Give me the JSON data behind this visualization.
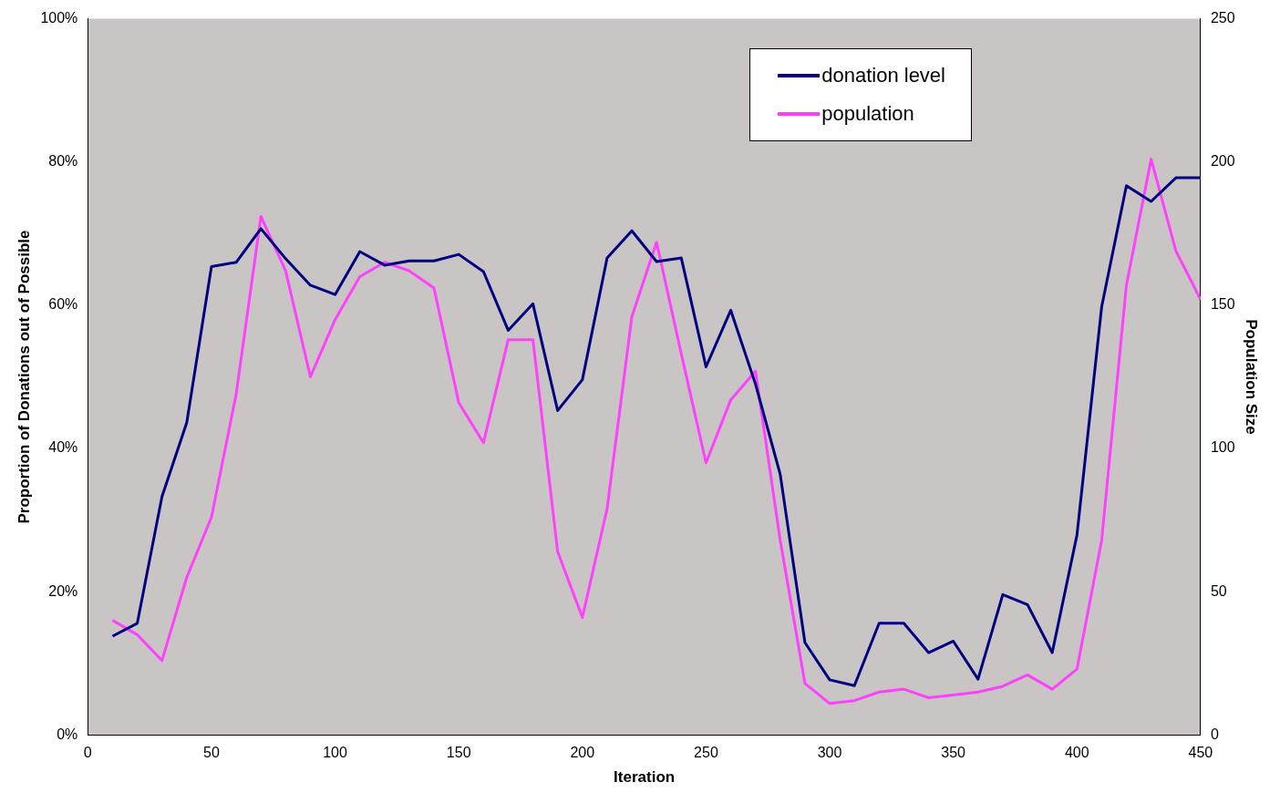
{
  "chart_data": {
    "type": "line",
    "xlabel": "Iteration",
    "ylabel": "Proportion of Donations out of Possible",
    "y2label": "Population Size",
    "x": [
      10,
      20,
      30,
      40,
      50,
      60,
      70,
      80,
      90,
      100,
      110,
      120,
      130,
      140,
      150,
      160,
      170,
      180,
      190,
      200,
      210,
      220,
      230,
      240,
      250,
      260,
      270,
      280,
      290,
      300,
      310,
      320,
      330,
      340,
      350,
      360,
      370,
      380,
      390,
      400,
      410,
      420,
      430,
      440,
      450
    ],
    "series": [
      {
        "name": "donation level",
        "color": "#000080",
        "values": [
          13.8,
          15.6,
          33.3,
          43.6,
          65.4,
          66,
          70.7,
          66.5,
          62.8,
          61.5,
          67.5,
          65.6,
          66.2,
          66.2,
          67.1,
          64.7,
          56.5,
          60.2,
          45.3,
          49.6,
          66.6,
          70.4,
          66.1,
          66.6,
          51.4,
          59.3,
          49,
          36.4,
          12.9,
          7.7,
          6.9,
          15.6,
          15.6,
          11.5,
          13.1,
          7.8,
          19.6,
          18.2,
          11.5,
          27.9,
          59.8,
          76.7,
          74.5,
          77.8,
          77.8
        ]
      },
      {
        "name": "population",
        "color": "#ff40ff",
        "axis": "y2",
        "values": [
          40,
          35,
          26,
          55,
          76,
          119,
          181,
          162,
          125,
          145,
          160,
          165,
          162,
          156,
          116,
          102,
          138,
          138,
          64,
          41,
          79,
          146,
          172,
          133,
          95,
          117,
          127,
          68,
          18,
          11,
          12,
          15,
          16,
          13,
          14,
          15,
          17,
          21,
          16,
          23,
          68,
          157,
          201,
          169,
          152
        ]
      }
    ],
    "xlim": [
      0,
      450
    ],
    "xticks": [
      0,
      50,
      100,
      150,
      200,
      250,
      300,
      350,
      400,
      450
    ],
    "ylim": [
      0,
      100
    ],
    "yticks": [
      {
        "value": 0,
        "label": "0%"
      },
      {
        "value": 20,
        "label": "20%"
      },
      {
        "value": 40,
        "label": "40%"
      },
      {
        "value": 60,
        "label": "60%"
      },
      {
        "value": 80,
        "label": "80%"
      },
      {
        "value": 100,
        "label": "100%"
      }
    ],
    "y2lim": [
      0,
      250
    ],
    "y2ticks": [
      0,
      50,
      100,
      150,
      200,
      250
    ],
    "grid": false,
    "legend": "top right",
    "marker": "none",
    "line_style": "solid"
  }
}
